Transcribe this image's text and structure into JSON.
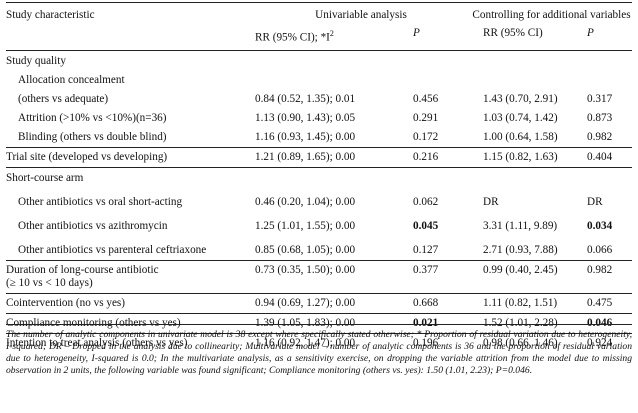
{
  "header": {
    "study_characteristic": "Study characteristic",
    "univariable": "Univariable analysis",
    "controlling": "Controlling for additional variables",
    "rr_i2": "RR (95% CI); *I",
    "i2_sup": "2",
    "p": "P",
    "rr": "RR (95% CI)"
  },
  "rows": [
    {
      "label": "Study quality",
      "type": "section"
    },
    {
      "label": "Allocation concealment",
      "type": "sub-label"
    },
    {
      "label": "(others vs adequate)",
      "uni": "0.84 (0.52, 1.35); 0.01",
      "p1": "0.456",
      "multi": "1.43 (0.70, 2.91)",
      "p2": "0.317"
    },
    {
      "label": "Attrition (>10% vs <10%)(n=36)",
      "uni": "1.13 (0.90, 1.43); 0.05",
      "p1": "0.291",
      "multi": "1.03 (0.74, 1.42)",
      "p2": "0.873"
    },
    {
      "label": "Blinding (others vs double blind)",
      "uni": "1.16 (0.93, 1.45); 0.00",
      "p1": "0.172",
      "multi": "1.00 (0.64, 1.58)",
      "p2": "0.982"
    },
    {
      "label": "Trial site (developed vs developing)",
      "uni": "1.21 (0.89, 1.65); 0.00",
      "p1": "0.216",
      "multi": "1.15 (0.82, 1.63)",
      "p2": "0.404"
    },
    {
      "label": "Short-course arm",
      "type": "section"
    },
    {
      "label": "Other antibiotics vs oral short-acting",
      "uni": "0.46 (0.20, 1.04); 0.00",
      "p1": "0.062",
      "multi": "DR",
      "p2": "DR"
    },
    {
      "label": "Other antibiotics vs azithromycin",
      "uni": "1.25 (1.01, 1.55); 0.00",
      "p1": "0.045",
      "multi": "3.31 (1.11, 9.89)",
      "p2": "0.034"
    },
    {
      "label": "Other antibiotics vs parenteral ceftriaxone",
      "uni": "0.85 (0.68, 1.05); 0.00",
      "p1": "0.127",
      "multi": "2.71 (0.93, 7.88)",
      "p2": "0.066"
    },
    {
      "label": "Duration of long-course antibiotic",
      "label2": "(≥ 10 vs < 10 days)",
      "uni": "0.73 (0.35, 1.50); 0.00",
      "p1": "0.377",
      "multi": "0.99 (0.40, 2.45)",
      "p2": "0.982"
    },
    {
      "label": "Cointervention (no vs yes)",
      "uni": "0.94 (0.69, 1.27); 0.00",
      "p1": "0.668",
      "multi": "1.11 (0.82, 1.51)",
      "p2": "0.475"
    },
    {
      "label": "Compliance monitoring (others vs yes)",
      "uni": "1.39 (1.05, 1.83); 0.00",
      "p1": "0.021",
      "multi": "1.52 (1.01, 2.28)",
      "p2": "0.046"
    },
    {
      "label": "Intention to treat analysis (others vs yes)",
      "uni": "1.16 (0.92, 1.47); 0.00",
      "p1": "0.196",
      "multi": "0.98 (0.66, 1.46)",
      "p2": "0.924"
    }
  ],
  "footnote": "The number of analytic components in univariate model is 38 except where specifically stated otherwise; * Proportion of residual variation due to heterogeneity, I-squared; DR – Dropped in the analysis due to collinearity; Multivariate model – number of analytic components is 36 and the proportion of residual variation due to heterogeneity, I-squared is 0.0; In the multivariate analysis, as a sensitivity exercise, on dropping the variable attrition from the model due to missing observation in 2 units, the following variable was found significant; Compliance monitoring (others vs. yes): 1.50 (1.01, 2.23); P=0.046."
}
